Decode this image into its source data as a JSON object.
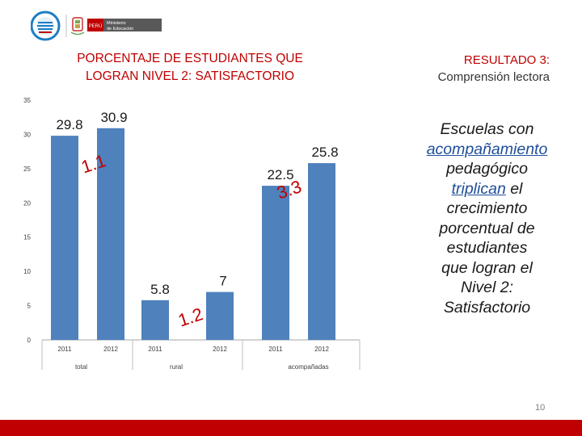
{
  "header": {
    "badge_text": "",
    "ministry_country": "PERÚ",
    "ministry_line1": "Ministerio",
    "ministry_line2": "de Educación",
    "colors": {
      "red": "#c00000",
      "gray": "#595959",
      "blue": "#1f7dc4"
    }
  },
  "title": {
    "line1": "PORCENTAJE DE ESTUDIANTES QUE",
    "line2": "LOGRAN NIVEL 2: SATISFACTORIO"
  },
  "result": {
    "label": "RESULTADO 3:",
    "subtitle": "Comprensión lectora"
  },
  "message": {
    "line1": "Escuelas con",
    "hl1": "acompañamiento",
    "line2": "pedagógico",
    "hl2": "triplican",
    "line3_rest": " el",
    "line4": "crecimiento",
    "line5": "porcentual de",
    "line6": "estudiantes",
    "line7": "que logran el",
    "line8": "Nivel 2:",
    "line9": "Satisfactorio"
  },
  "page_number": "10",
  "chart_data": {
    "type": "bar",
    "ylim": [
      0,
      35
    ],
    "yticks": [
      "0",
      "5",
      "10",
      "15",
      "20",
      "25",
      "30",
      "35"
    ],
    "bar_color": "#4f81bd",
    "grid": false,
    "groups": [
      {
        "name": "total",
        "bars": [
          {
            "year": "2011",
            "value": 29.8,
            "label": "29.8"
          },
          {
            "year": "2012",
            "value": 30.9,
            "label": "30.9"
          }
        ],
        "growth": "1.1"
      },
      {
        "name": "rural",
        "bars": [
          {
            "year": "2011",
            "value": 5.8,
            "label": "5.8"
          },
          {
            "year": "2012",
            "value": 7.0,
            "label": "7"
          }
        ],
        "growth": "1.2"
      },
      {
        "name": "acompañadas",
        "bars": [
          {
            "year": "2011",
            "value": 22.5,
            "label": "22.5"
          },
          {
            "year": "2012",
            "value": 25.8,
            "label": "25.8"
          }
        ],
        "growth": "3.3"
      }
    ]
  }
}
